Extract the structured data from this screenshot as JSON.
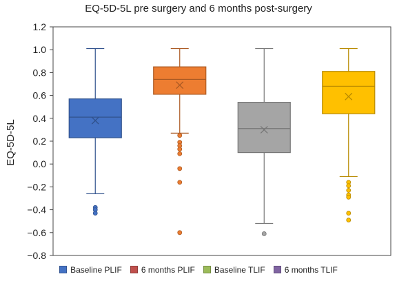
{
  "chart_data": {
    "type": "box",
    "title": "EQ-5D-5L pre surgery and 6 months post-surgery",
    "xlabel": "",
    "ylabel": "EQ-5D-5L",
    "ylim": [
      -0.8,
      1.2
    ],
    "yticks": [
      1.2,
      1.0,
      0.8,
      0.6,
      0.4,
      0.2,
      0.0,
      -0.2,
      -0.4,
      -0.6,
      -0.8
    ],
    "ytick_labels": [
      "1.2",
      "1.0",
      "0.8",
      "0.6",
      "0.4",
      "0.2",
      "0.0",
      "−0.2",
      "−0.4",
      "−0.6",
      "−0.8"
    ],
    "grid": false,
    "legend": "bottom",
    "series": [
      {
        "name": "Baseline PLIF",
        "color": "#4472C4",
        "legend_color": "#4472C4",
        "whisker_low": -0.26,
        "q1": 0.23,
        "median": 0.41,
        "q3": 0.57,
        "whisker_high": 1.01,
        "mean": 0.38,
        "outliers": [
          -0.38,
          -0.4,
          -0.43
        ]
      },
      {
        "name": "6 months PLIF",
        "color": "#ED7D31",
        "legend_color": "#C0504D",
        "whisker_low": 0.27,
        "q1": 0.61,
        "median": 0.74,
        "q3": 0.85,
        "whisker_high": 1.01,
        "mean": 0.69,
        "outliers": [
          0.25,
          0.19,
          0.16,
          0.13,
          0.09,
          -0.04,
          -0.16,
          -0.6
        ]
      },
      {
        "name": "Baseline TLIF",
        "color": "#A5A5A5",
        "legend_color": "#9BBB59",
        "whisker_low": -0.52,
        "q1": 0.1,
        "median": 0.31,
        "q3": 0.54,
        "whisker_high": 1.01,
        "mean": 0.3,
        "outliers": [
          -0.61
        ]
      },
      {
        "name": "6 months TLIF",
        "color": "#FFC000",
        "legend_color": "#8064A2",
        "whisker_low": -0.11,
        "q1": 0.44,
        "median": 0.68,
        "q3": 0.81,
        "whisker_high": 1.01,
        "mean": 0.59,
        "outliers": [
          -0.16,
          -0.19,
          -0.23,
          -0.27,
          -0.29,
          -0.43,
          -0.49
        ]
      }
    ]
  }
}
